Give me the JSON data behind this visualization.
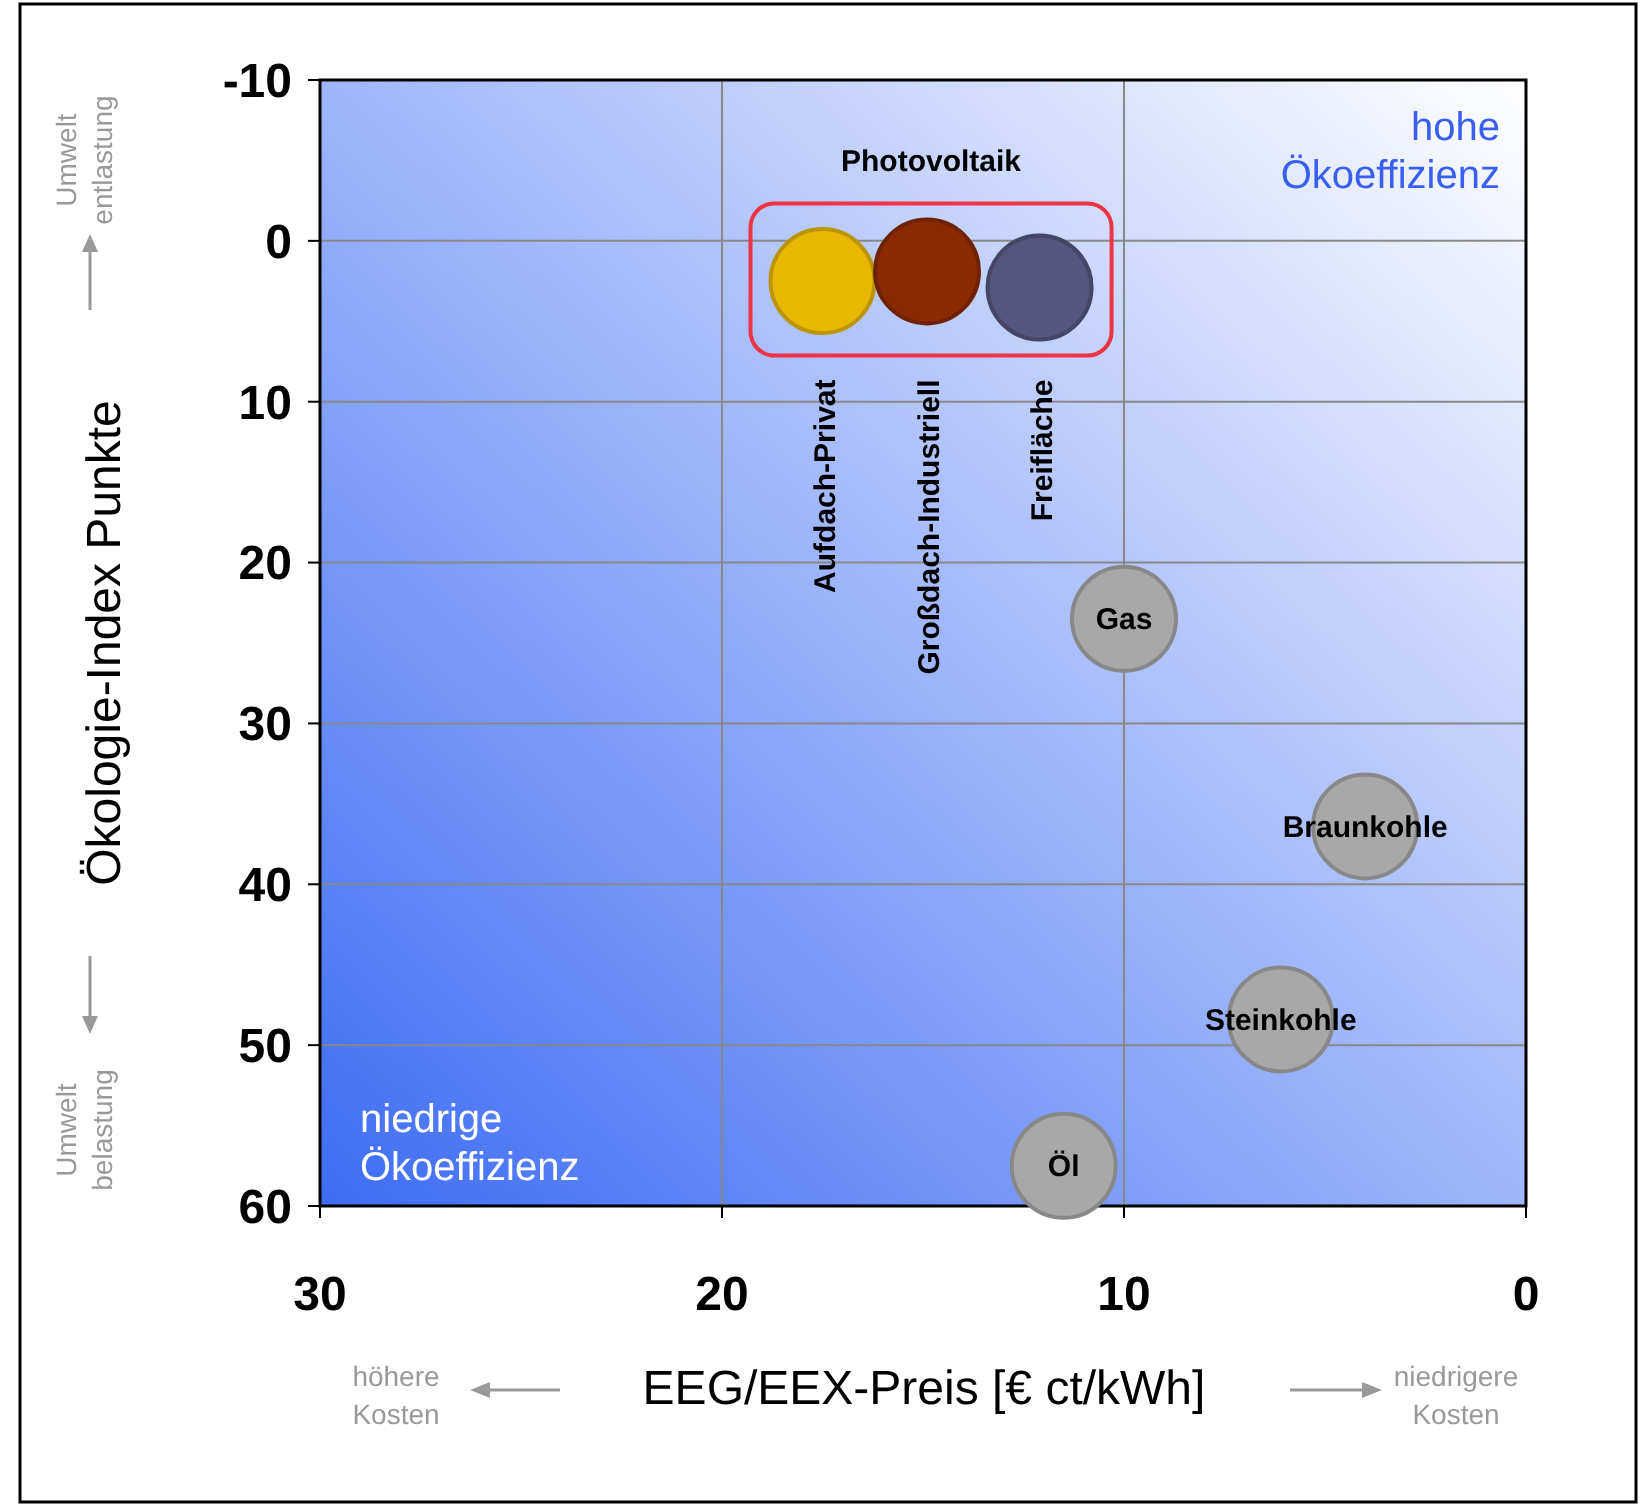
{
  "chart_data": {
    "type": "bubble",
    "xlabel": "EEG/EEX-Preis [€ ct/kWh]",
    "ylabel": "Ökologie-Index Punkte",
    "xlim": [
      30,
      0
    ],
    "xticks": [
      30,
      20,
      10,
      0
    ],
    "ylim": [
      60,
      -10
    ],
    "yticks": [
      -10,
      0,
      10,
      20,
      30,
      40,
      50,
      60
    ],
    "grid": true,
    "series": [
      {
        "name": "Aufdach-Privat",
        "color": "#e8b800",
        "x": [
          17.5
        ],
        "values": [
          2.5
        ],
        "sizes": [
          1
        ]
      },
      {
        "name": "Großdach-Industriell",
        "color": "#8a2a00",
        "x": [
          14.9
        ],
        "values": [
          1.9
        ],
        "sizes": [
          1
        ]
      },
      {
        "name": "Freifläche",
        "color": "#55557e",
        "x": [
          12.1
        ],
        "values": [
          2.9
        ],
        "sizes": [
          1
        ]
      },
      {
        "name": "Gas",
        "color": "#a8a8a8",
        "x": [
          10
        ],
        "values": [
          23.5
        ],
        "sizes": [
          1
        ]
      },
      {
        "name": "Braunkohle",
        "color": "#a8a8a8",
        "x": [
          4
        ],
        "values": [
          36.4
        ],
        "sizes": [
          1
        ]
      },
      {
        "name": "Steinkohle",
        "color": "#a8a8a8",
        "x": [
          6.1
        ],
        "values": [
          48.4
        ],
        "sizes": [
          1
        ]
      },
      {
        "name": "Öl",
        "color": "#a8a8a8",
        "x": [
          11.5
        ],
        "values": [
          57.5
        ],
        "sizes": [
          1
        ]
      }
    ],
    "annotations": [
      "Photovoltaik",
      "hohe\nÖkoeffizienz",
      "niedrige\nÖkoeffizienz",
      "Umwelt\nentlastung",
      "Umwelt\nbelastung",
      "höhere\nKosten",
      "niedrigere\nKosten"
    ]
  }
}
